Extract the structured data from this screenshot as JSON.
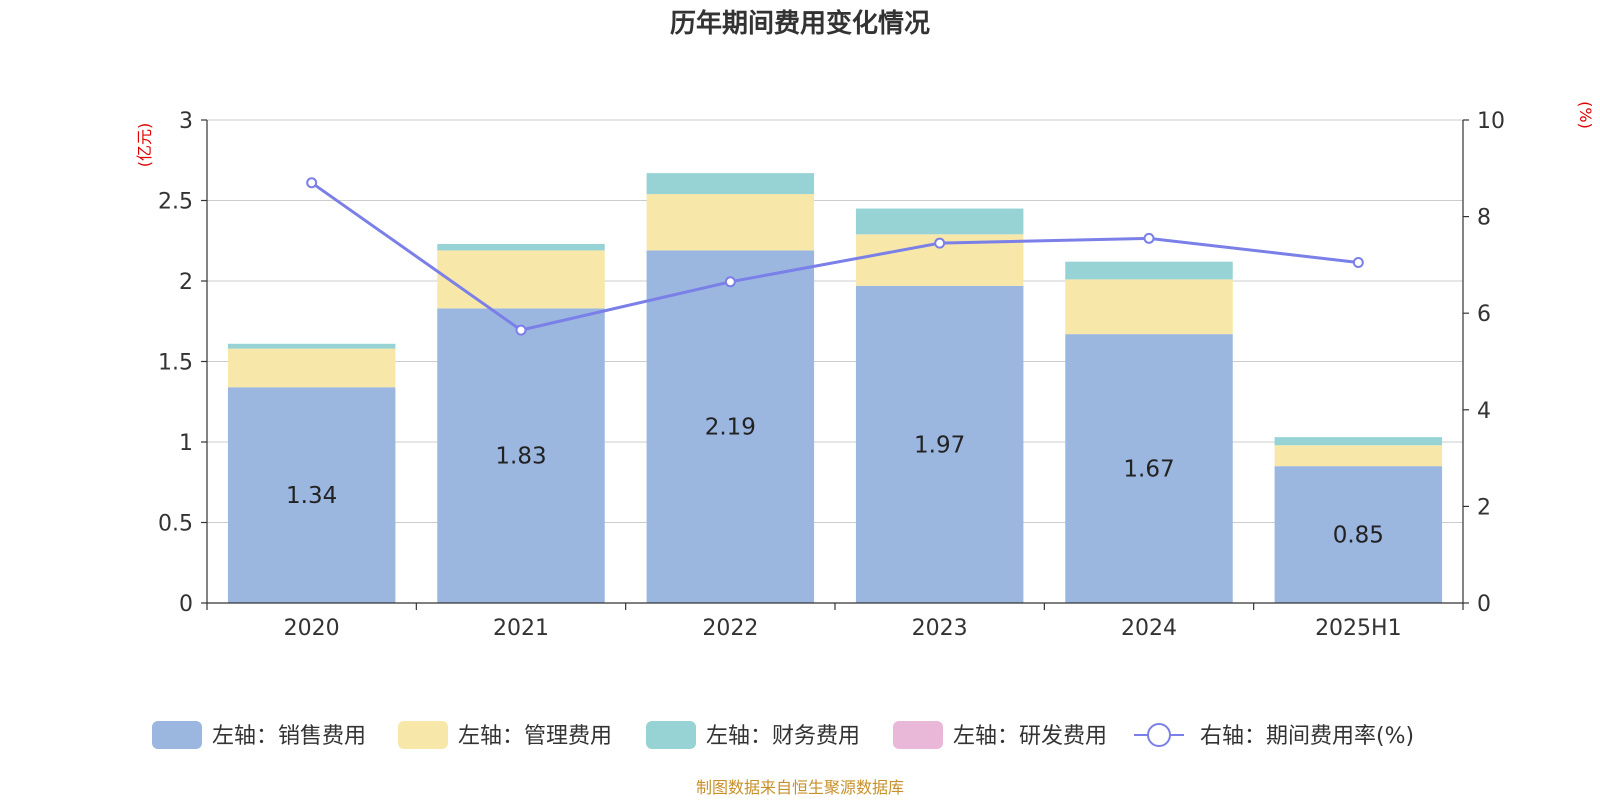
{
  "chart_data": {
    "type": "bar",
    "title": "历年期间费用变化情况",
    "categories": [
      "2020",
      "2021",
      "2022",
      "2023",
      "2024",
      "2025H1"
    ],
    "left_axis": {
      "unit": "(亿元)",
      "ylim": [
        0,
        3
      ],
      "ticks": [
        "0",
        "0.5",
        "1",
        "1.5",
        "2",
        "2.5",
        "3"
      ]
    },
    "right_axis": {
      "unit": "(%)",
      "ylim": [
        0,
        10
      ],
      "ticks": [
        "0",
        "2",
        "4",
        "6",
        "8",
        "10"
      ]
    },
    "series": [
      {
        "name": "左轴：销售费用",
        "type": "bar",
        "axis": "left",
        "color": "#9bb7e0",
        "values": [
          1.34,
          1.83,
          2.19,
          1.97,
          1.67,
          0.85
        ],
        "labels": [
          "1.34",
          "1.83",
          "2.19",
          "1.97",
          "1.67",
          "0.85"
        ]
      },
      {
        "name": "左轴：管理费用",
        "type": "bar",
        "axis": "left",
        "color": "#f7e7a9",
        "values": [
          0.24,
          0.36,
          0.35,
          0.32,
          0.34,
          0.13
        ]
      },
      {
        "name": "左轴：财务费用",
        "type": "bar",
        "axis": "left",
        "color": "#97d3d4",
        "values": [
          0.03,
          0.04,
          0.13,
          0.16,
          0.11,
          0.05
        ]
      },
      {
        "name": "左轴：研发费用",
        "type": "bar",
        "axis": "left",
        "color": "#e9b8d9",
        "values": [
          0,
          0,
          0,
          0,
          0,
          0
        ]
      },
      {
        "name": "右轴：期间费用率(%)",
        "type": "line",
        "axis": "right",
        "color": "#7b7fe8",
        "values": [
          8.7,
          5.65,
          6.65,
          7.45,
          7.55,
          7.05
        ]
      }
    ],
    "grid": true,
    "legend": "bottom"
  },
  "footer": {
    "source": "制图数据来自恒生聚源数据库"
  }
}
